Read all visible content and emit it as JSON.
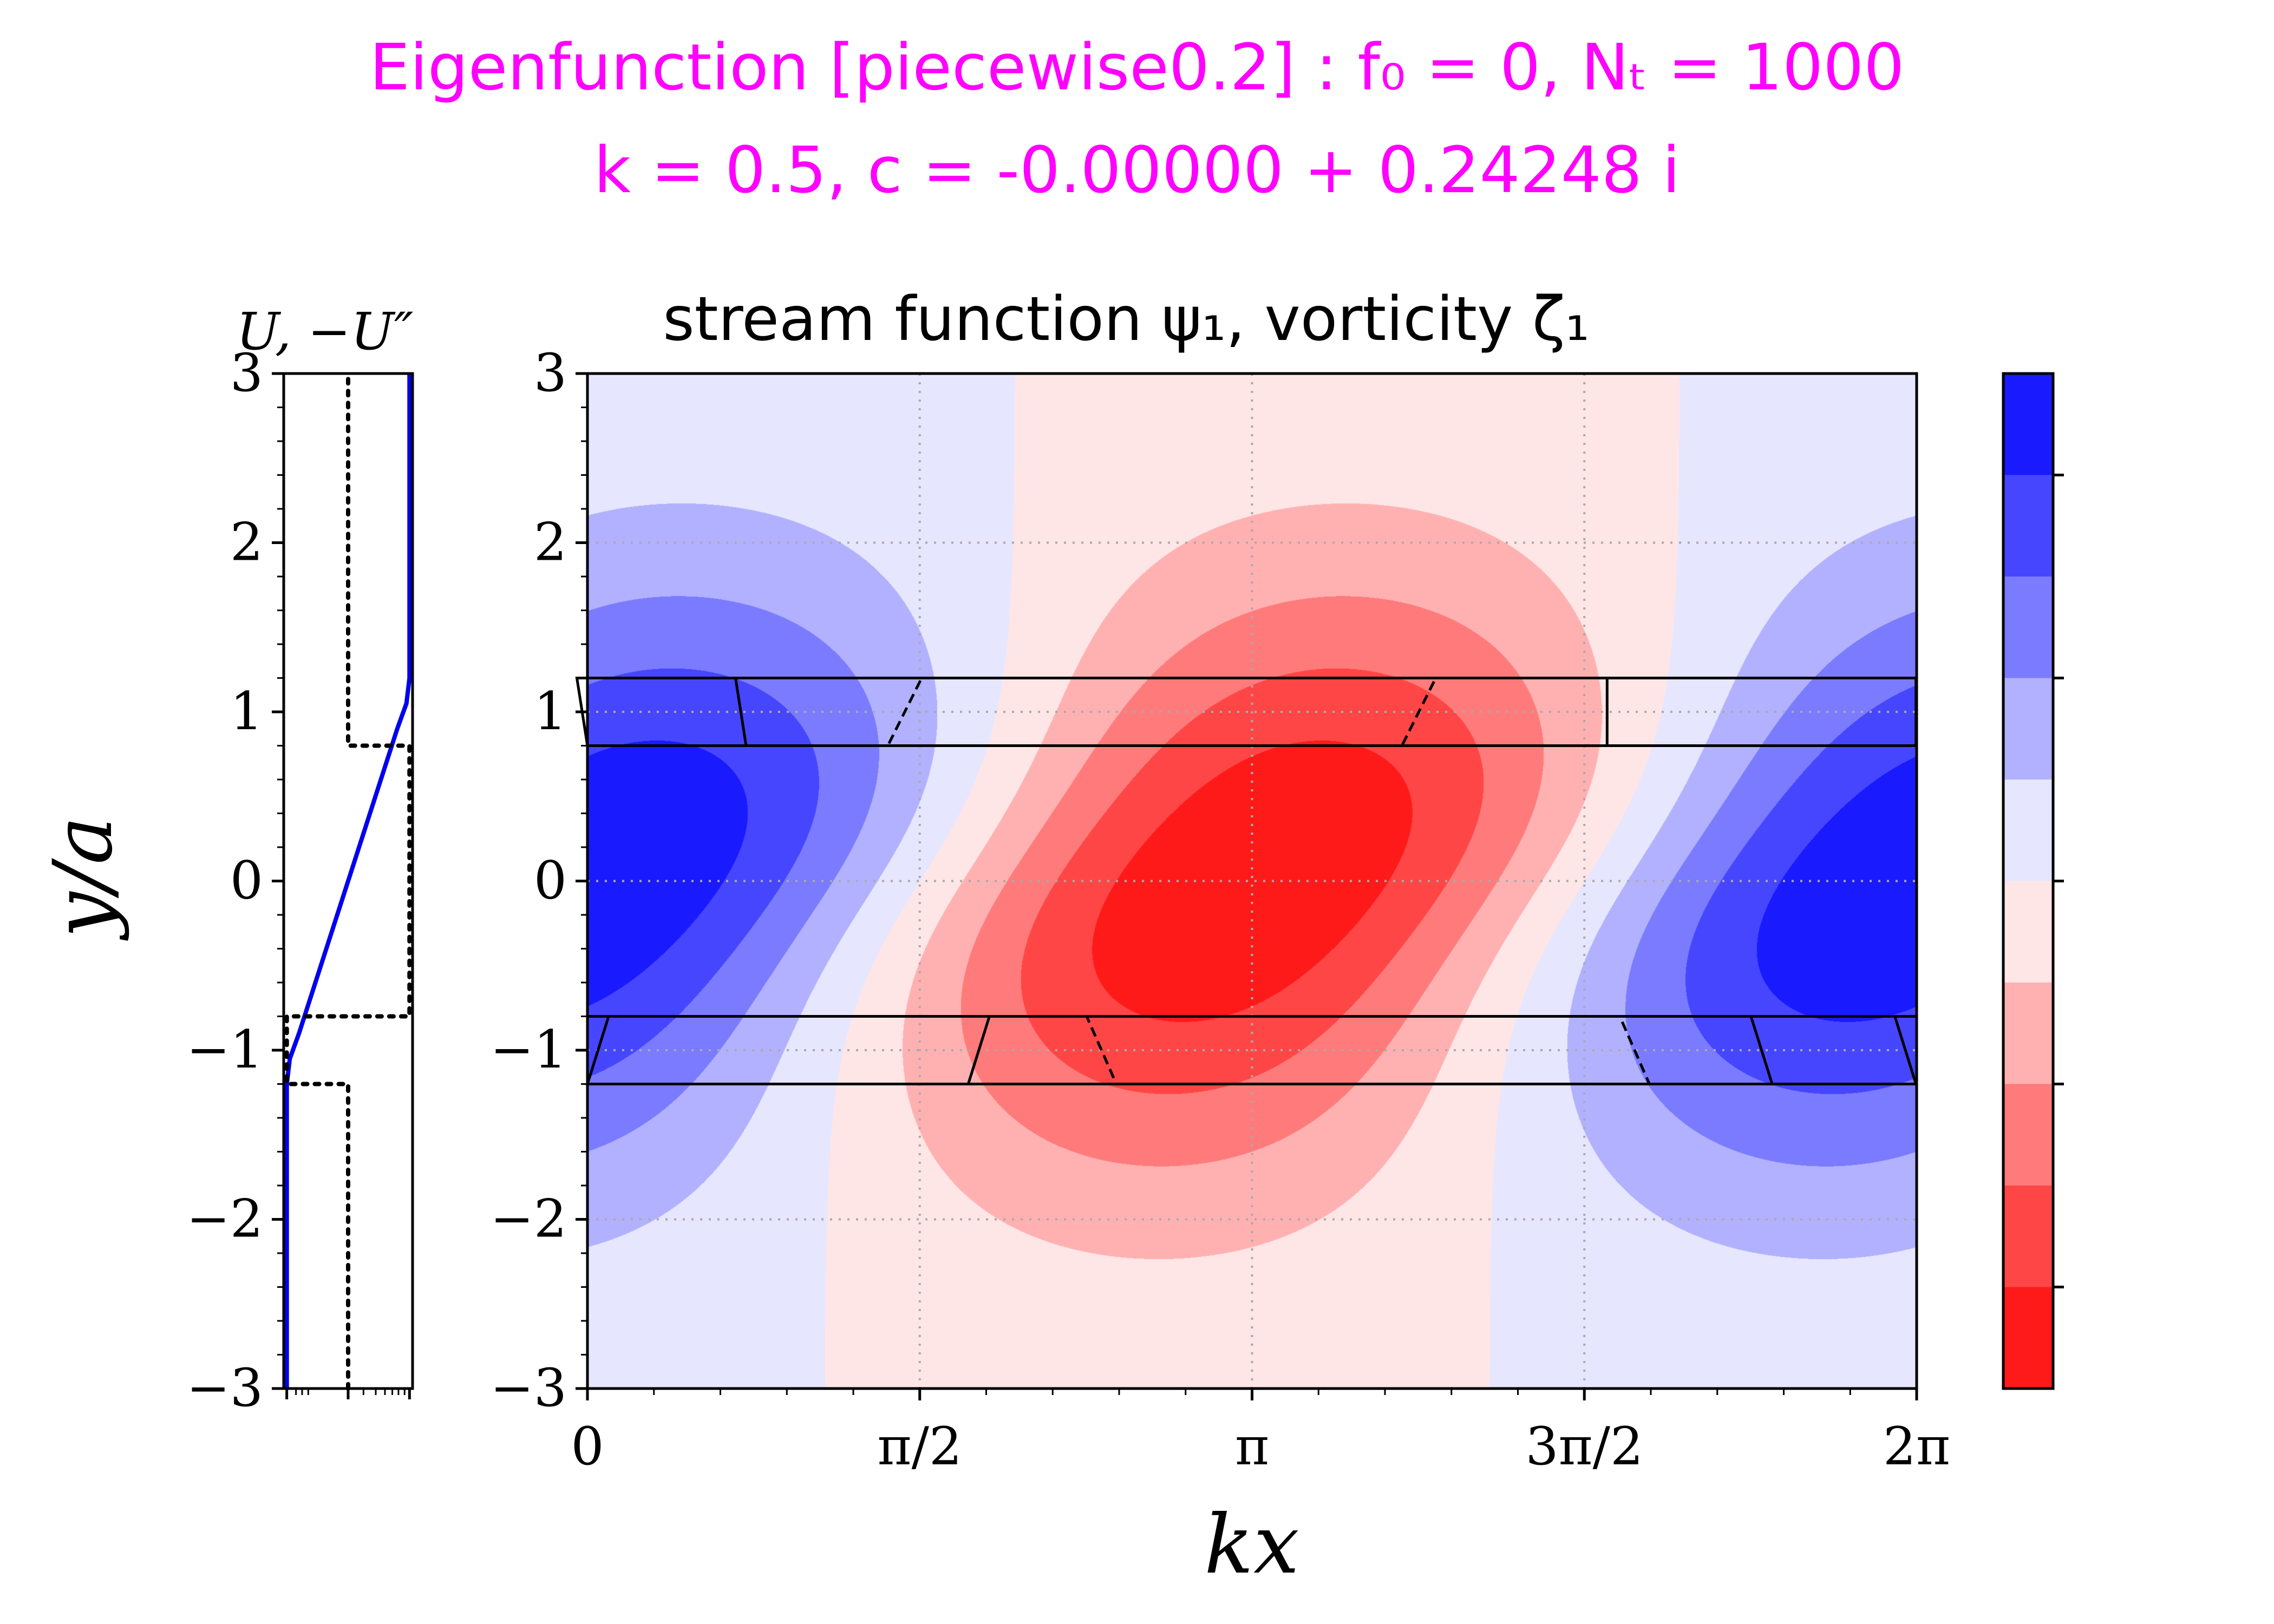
{
  "title": {
    "line1": "Eigenfunction [piecewise0.2] :  f₀ = 0, Nₜ = 1000",
    "line2": "k = 0.5, c = -0.00000 + 0.24248 i",
    "color": "#ff00ff"
  },
  "chart_data": [
    {
      "type": "line",
      "name": "profile-panel",
      "title": "U, −U″",
      "ylabel": "y/a",
      "ylim": [
        -3,
        3
      ],
      "yticks": [
        -3,
        -2,
        -1,
        0,
        1,
        2,
        3
      ],
      "ytick_labels": [
        "−3",
        "−2",
        "−1",
        "0",
        "1",
        "2",
        "3"
      ],
      "series": [
        {
          "color": "#0000ee",
          "style": "solid",
          "x": [
            -1,
            -1,
            -0.95,
            -0.8,
            0,
            0.8,
            0.95,
            1,
            1
          ],
          "y": [
            -3,
            -1.2,
            -1.05,
            -0.9,
            0,
            0.9,
            1.05,
            1.2,
            3
          ]
        },
        {
          "color": "#000000",
          "style": "dotted",
          "x": [
            0,
            0,
            -1,
            -1,
            1,
            1,
            0,
            0
          ],
          "y": [
            -3,
            -1.2,
            -1.2,
            -0.8,
            -0.8,
            0.8,
            0.8,
            3
          ]
        }
      ],
      "xlim": [
        -1.05,
        1.05
      ]
    },
    {
      "type": "heatmap",
      "name": "main-panel",
      "title": "stream function ψ₁, vorticity ζ₁",
      "xlabel": "kx",
      "ylabel": "",
      "xlim": [
        0,
        6.2832
      ],
      "ylim": [
        -3,
        3
      ],
      "xticks": [
        0,
        1.5708,
        3.1416,
        4.7124,
        6.2832
      ],
      "xtick_labels": [
        "0",
        "π/2",
        "π",
        "3π/2",
        "2π"
      ],
      "yticks": [
        -3,
        -2,
        -1,
        0,
        1,
        2,
        3
      ],
      "ytick_labels": [
        "−3",
        "−2",
        "−1",
        "0",
        "1",
        "2",
        "3"
      ],
      "grid": true,
      "contour_levels": 10,
      "colormap": [
        "#1a1aff",
        "#4646ff",
        "#7b7bff",
        "#b1b1ff",
        "#e6e6ff",
        "#ffe6e6",
        "#ffb1b1",
        "#ff7b7b",
        "#ff4646",
        "#ff1a1a"
      ],
      "vorticity_layers": [
        -1.2,
        -0.8,
        0.8,
        1.2
      ]
    }
  ],
  "colorbar": {
    "colors": [
      "#1a1aff",
      "#4646ff",
      "#7b7bff",
      "#b1b1ff",
      "#e6e6ff",
      "#ffe6e6",
      "#ffb1b1",
      "#ff7b7b",
      "#ff4646",
      "#ff1a1a"
    ],
    "orientation": "vertical"
  }
}
